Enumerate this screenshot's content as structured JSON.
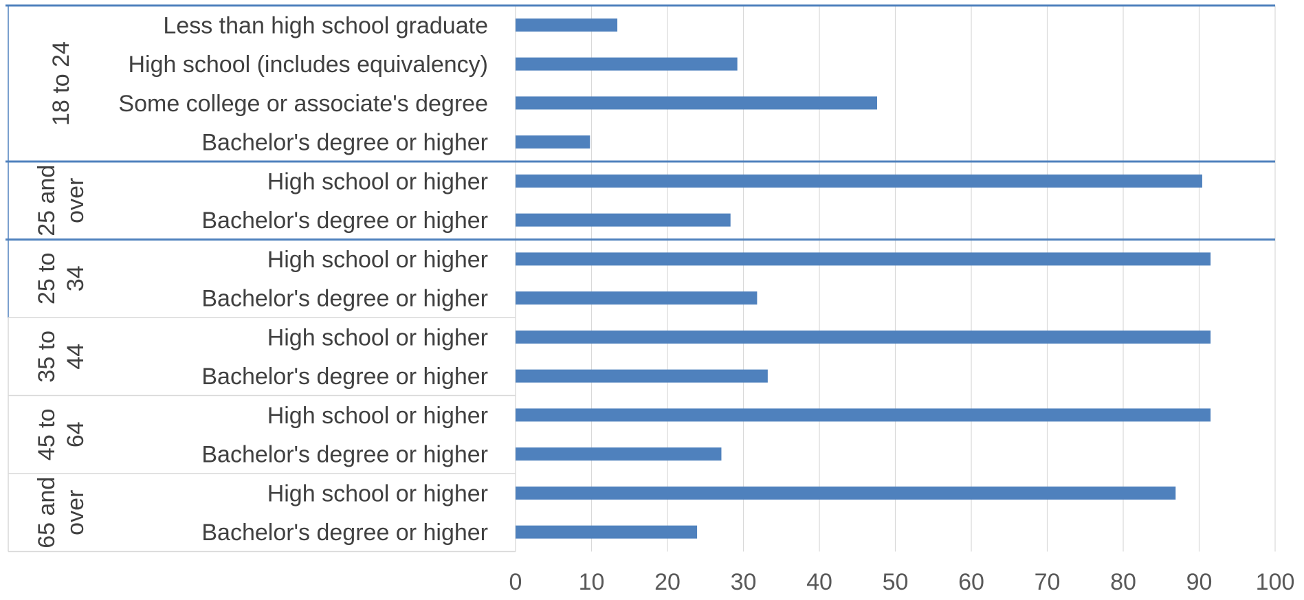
{
  "chart_data": {
    "type": "bar",
    "orientation": "horizontal",
    "title": "",
    "xlabel": "",
    "ylabel": "",
    "xlim": [
      0,
      100
    ],
    "x_ticks": [
      "0",
      "10",
      "20",
      "30",
      "40",
      "50",
      "60",
      "70",
      "80",
      "90",
      "100"
    ],
    "grid": "vertical",
    "legend": "none",
    "bar_color": "#4f81bd",
    "groups": [
      {
        "label": "18 to 24",
        "label_lines": [
          "18 to 24"
        ],
        "items": [
          {
            "label": "Less than high school graduate",
            "value": 13.4
          },
          {
            "label": "High school (includes equivalency)",
            "value": 29.2
          },
          {
            "label": "Some college or associate's degree",
            "value": 47.6
          },
          {
            "label": "Bachelor's degree or higher",
            "value": 9.8
          }
        ]
      },
      {
        "label": "25 and over",
        "label_lines": [
          "25 and",
          "over"
        ],
        "items": [
          {
            "label": "High school or higher",
            "value": 90.4
          },
          {
            "label": "Bachelor's degree or higher",
            "value": 28.3
          }
        ]
      },
      {
        "label": "25 to 34",
        "label_lines": [
          "25 to",
          "34"
        ],
        "items": [
          {
            "label": "High school or higher",
            "value": 91.5
          },
          {
            "label": "Bachelor's degree or higher",
            "value": 31.8
          }
        ]
      },
      {
        "label": "35 to 44",
        "label_lines": [
          "35 to",
          "44"
        ],
        "items": [
          {
            "label": "High school or higher",
            "value": 91.5
          },
          {
            "label": "Bachelor's degree or higher",
            "value": 33.2
          }
        ]
      },
      {
        "label": "45 to 64",
        "label_lines": [
          "45 to",
          "64"
        ],
        "items": [
          {
            "label": "High school or higher",
            "value": 91.5
          },
          {
            "label": "Bachelor's degree or higher",
            "value": 27.1
          }
        ]
      },
      {
        "label": "65 and over",
        "label_lines": [
          "65 and",
          "over"
        ],
        "items": [
          {
            "label": "High school or higher",
            "value": 86.9
          },
          {
            "label": "Bachelor's degree or higher",
            "value": 23.9
          }
        ]
      }
    ]
  }
}
